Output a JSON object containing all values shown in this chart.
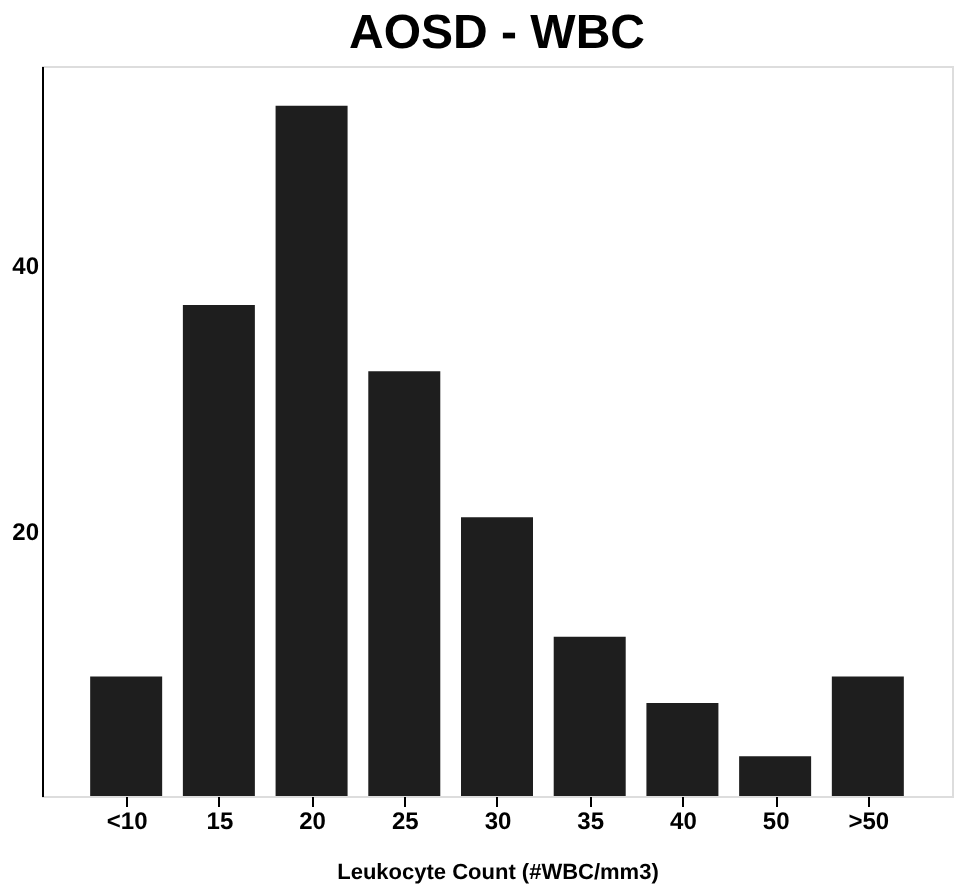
{
  "chart_data": {
    "type": "bar",
    "title": "AOSD - WBC",
    "xlabel": "Leukocyte Count (#WBC/mm3)",
    "categories": [
      "<10",
      "15",
      "20",
      "25",
      "30",
      "35",
      "40",
      "50",
      ">50"
    ],
    "values": [
      9,
      37,
      52,
      32,
      21,
      12,
      7,
      3,
      9
    ],
    "color": "#1e1e1e",
    "ylim": [
      0,
      55
    ],
    "yticks": [
      20,
      40
    ],
    "grid": false
  }
}
